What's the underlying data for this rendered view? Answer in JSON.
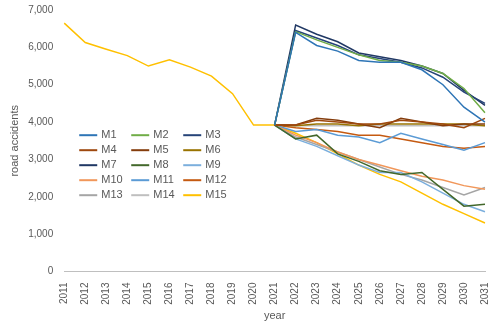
{
  "chart_data": {
    "type": "line",
    "x_label": "year",
    "y_label": "road accidents",
    "categories": [
      "2011",
      "2012",
      "2013",
      "2014",
      "2015",
      "2016",
      "2017",
      "2018",
      "2019",
      "2020",
      "2021",
      "2022",
      "2023",
      "2024",
      "2025",
      "2026",
      "2027",
      "2028",
      "2029",
      "2030",
      "2031"
    ],
    "ylim": [
      0,
      7000
    ],
    "yticks": [
      0,
      1000,
      2000,
      3000,
      4000,
      5000,
      6000,
      7000
    ],
    "grid": false,
    "legend": "left",
    "series": [
      {
        "name": "M1",
        "color": "#2E75B6",
        "values": [
          null,
          null,
          null,
          null,
          null,
          null,
          null,
          null,
          null,
          null,
          3920,
          6400,
          6050,
          5900,
          5650,
          5600,
          5600,
          5400,
          5000,
          4400,
          4000
        ]
      },
      {
        "name": "M2",
        "color": "#70AD47",
        "values": [
          null,
          null,
          null,
          null,
          null,
          null,
          null,
          null,
          null,
          null,
          3920,
          6420,
          6200,
          6000,
          5800,
          5650,
          5600,
          5500,
          5300,
          4900,
          4250
        ]
      },
      {
        "name": "M3",
        "color": "#264478",
        "values": [
          null,
          null,
          null,
          null,
          null,
          null,
          null,
          null,
          null,
          null,
          3920,
          6450,
          6250,
          6050,
          5800,
          5700,
          5600,
          5450,
          5200,
          4800,
          4500
        ]
      },
      {
        "name": "M4",
        "color": "#9E480E",
        "values": [
          null,
          null,
          null,
          null,
          null,
          null,
          null,
          null,
          null,
          null,
          3920,
          3920,
          4050,
          4000,
          3950,
          3950,
          4050,
          4000,
          3950,
          3850,
          4100
        ]
      },
      {
        "name": "M5",
        "color": "#843C0C",
        "values": [
          null,
          null,
          null,
          null,
          null,
          null,
          null,
          null,
          null,
          null,
          3920,
          3920,
          4100,
          4050,
          3950,
          3850,
          4100,
          4000,
          3900,
          3950,
          3950
        ]
      },
      {
        "name": "M6",
        "color": "#997300",
        "values": [
          null,
          null,
          null,
          null,
          null,
          null,
          null,
          null,
          null,
          null,
          3920,
          3900,
          3950,
          3950,
          3900,
          3950,
          3950,
          3950,
          3950,
          3950,
          3900
        ]
      },
      {
        "name": "M7",
        "color": "#203864",
        "values": [
          null,
          null,
          null,
          null,
          null,
          null,
          null,
          null,
          null,
          null,
          3920,
          6600,
          6350,
          6150,
          5850,
          5750,
          5650,
          5500,
          5300,
          4850,
          4450
        ]
      },
      {
        "name": "M8",
        "color": "#43682B",
        "values": [
          null,
          null,
          null,
          null,
          null,
          null,
          null,
          null,
          null,
          null,
          3920,
          3550,
          3650,
          3150,
          2950,
          2700,
          2600,
          2650,
          2200,
          1750,
          1800
        ]
      },
      {
        "name": "M9",
        "color": "#7CAFDD",
        "values": [
          null,
          null,
          null,
          null,
          null,
          null,
          null,
          null,
          null,
          null,
          3920,
          3550,
          3350,
          3100,
          2850,
          2650,
          2650,
          2400,
          2100,
          1800,
          1600
        ]
      },
      {
        "name": "M10",
        "color": "#F1975A",
        "values": [
          null,
          null,
          null,
          null,
          null,
          null,
          null,
          null,
          null,
          null,
          3920,
          3650,
          3450,
          3200,
          3000,
          2850,
          2700,
          2550,
          2450,
          2300,
          2200
        ]
      },
      {
        "name": "M11",
        "color": "#5B9BD5",
        "values": [
          null,
          null,
          null,
          null,
          null,
          null,
          null,
          null,
          null,
          null,
          3920,
          3750,
          3800,
          3650,
          3600,
          3450,
          3700,
          3550,
          3400,
          3250,
          3450
        ]
      },
      {
        "name": "M12",
        "color": "#C55A11",
        "values": [
          null,
          null,
          null,
          null,
          null,
          null,
          null,
          null,
          null,
          null,
          3920,
          3850,
          3800,
          3750,
          3650,
          3650,
          3550,
          3450,
          3350,
          3300,
          3350
        ]
      },
      {
        "name": "M13",
        "color": "#A5A5A5",
        "values": [
          null,
          null,
          null,
          null,
          null,
          null,
          null,
          null,
          null,
          null,
          3920,
          3600,
          3400,
          3200,
          3000,
          2800,
          2600,
          2450,
          2250,
          2050,
          2250
        ]
      },
      {
        "name": "M14",
        "color": "#BFBFBF",
        "values": [
          null,
          null,
          null,
          null,
          null,
          null,
          null,
          null,
          null,
          null,
          3920,
          3900,
          3900,
          3900,
          3900,
          3900,
          3900,
          3900,
          3900,
          3900,
          3900
        ]
      },
      {
        "name": "M15",
        "color": "#FFC000",
        "values": [
          6650,
          6130,
          5950,
          5780,
          5500,
          5670,
          5470,
          5230,
          4760,
          3920,
          3920,
          3700,
          3450,
          3150,
          2850,
          2600,
          2400,
          2100,
          1800,
          1550,
          1300
        ]
      }
    ]
  }
}
